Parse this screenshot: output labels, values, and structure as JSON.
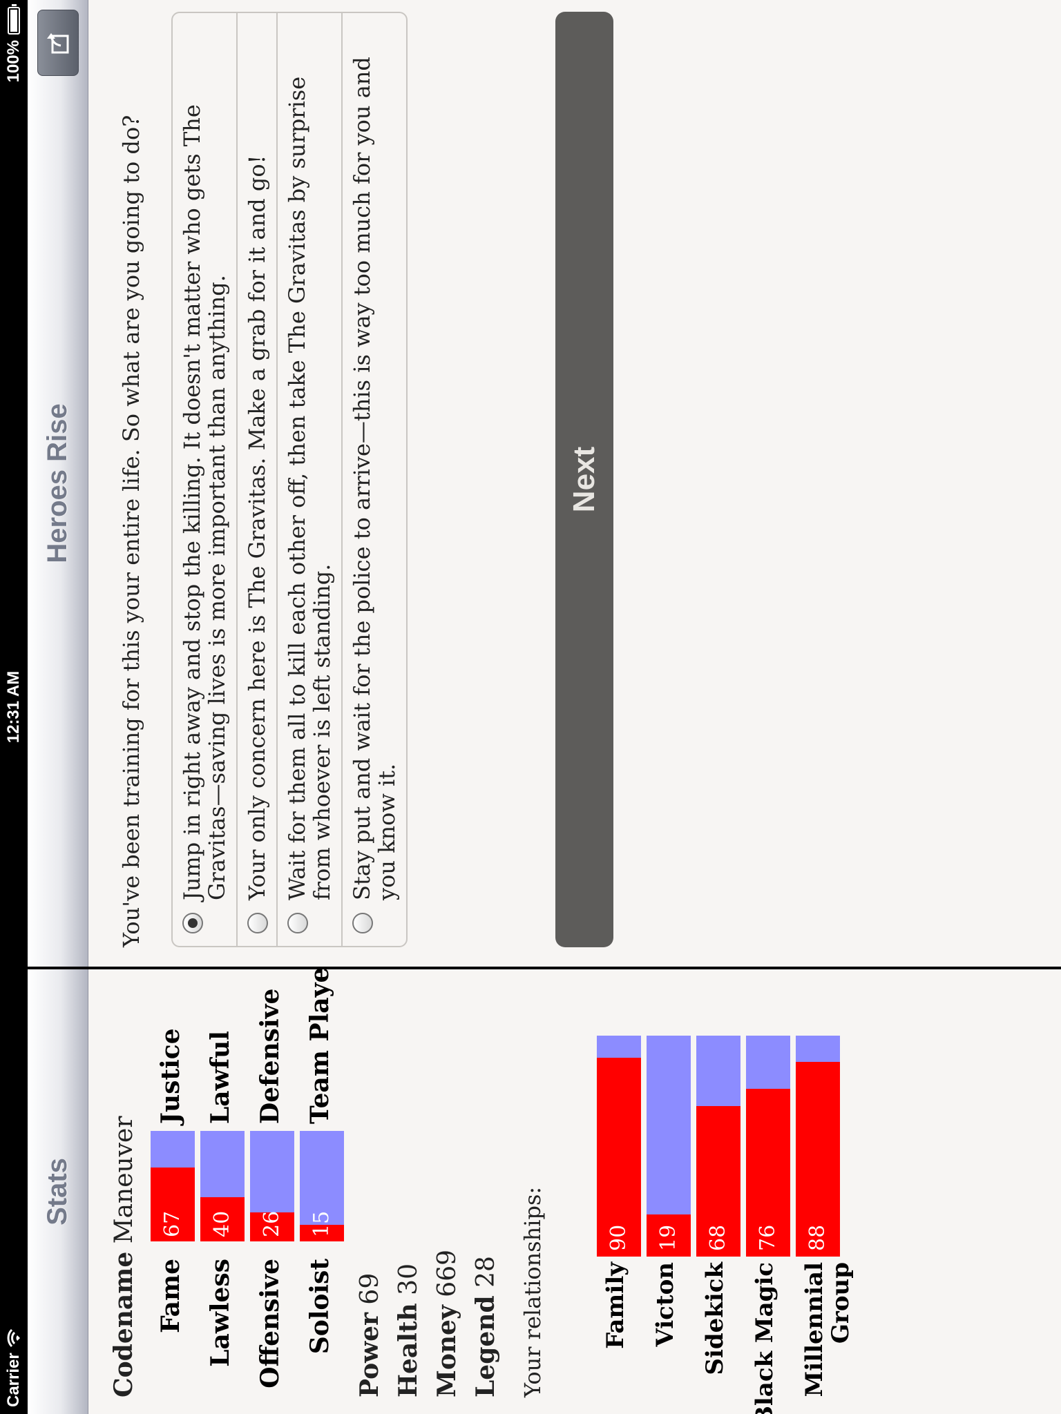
{
  "status_bar": {
    "carrier": "Carrier",
    "time": "12:31 AM",
    "battery": "100%"
  },
  "stats_panel": {
    "title": "Stats",
    "codename_label": "Codename",
    "codename_value": "Maneuver",
    "opposed_stats": [
      {
        "left": "Fame",
        "right": "Justice",
        "value": 67
      },
      {
        "left": "Lawless",
        "right": "Lawful",
        "value": 40
      },
      {
        "left": "Offensive",
        "right": "Defensive",
        "value": 26
      },
      {
        "left": "Soloist",
        "right": "Team Player",
        "value": 15
      }
    ],
    "plain_stats": [
      {
        "label": "Power",
        "value": "69"
      },
      {
        "label": "Health",
        "value": "30"
      },
      {
        "label": "Money",
        "value": "669"
      },
      {
        "label": "Legend",
        "value": "28"
      }
    ],
    "relationships_heading": "Your relationships:",
    "relationships": [
      {
        "label": "Family",
        "value": 90
      },
      {
        "label": "Victon",
        "value": 19
      },
      {
        "label": "Sidekick",
        "value": 68
      },
      {
        "label": "Black Magic",
        "value": 76
      },
      {
        "label": "Millennial Group",
        "value": 88
      }
    ]
  },
  "main_panel": {
    "title": "Heroes Rise",
    "share_icon": "share-icon",
    "question": "You've been training for this your entire life. So what are you going to do?",
    "choices": [
      {
        "text": "Jump in right away and stop the killing. It doesn't matter who gets The Gravitas—saving lives is more important than anything.",
        "selected": true
      },
      {
        "text": "Your only concern here is The Gravitas. Make a grab for it and go!",
        "selected": false
      },
      {
        "text": "Wait for them all to kill each other off, then take The Gravitas by surprise from whoever is left standing.",
        "selected": false
      },
      {
        "text": "Stay put and wait for the police to arrive—this is way too much for you and you know it.",
        "selected": false
      }
    ],
    "next_label": "Next"
  },
  "colors": {
    "bar_red": "#ff0000",
    "bar_blue": "#8c8cff",
    "button_gray": "#5d5c5a"
  }
}
